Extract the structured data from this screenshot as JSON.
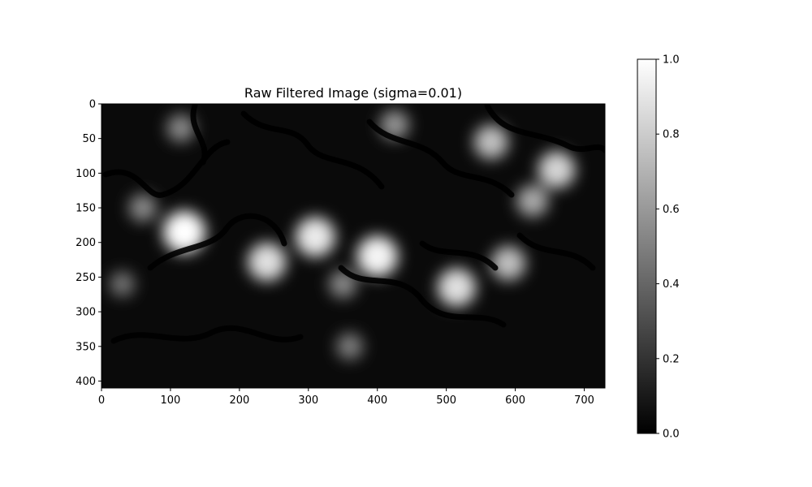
{
  "chart_data": {
    "type": "heatmap",
    "title": "Raw Filtered Image (sigma=0.01)",
    "xlabel": "",
    "ylabel": "",
    "colormap": "gray",
    "xlim": [
      0,
      730
    ],
    "ylim": [
      410,
      0
    ],
    "x_ticks": [
      0,
      100,
      200,
      300,
      400,
      500,
      600,
      700
    ],
    "y_ticks": [
      0,
      50,
      100,
      150,
      200,
      250,
      300,
      350,
      400
    ],
    "colorbar": {
      "range": [
        0.0,
        1.0
      ],
      "ticks": [
        "0.0",
        "0.2",
        "0.4",
        "0.6",
        "0.8",
        "1.0"
      ]
    },
    "bright_spots": [
      {
        "x": 120,
        "y": 185,
        "value": 1.0
      },
      {
        "x": 400,
        "y": 220,
        "value": 0.95
      },
      {
        "x": 310,
        "y": 192,
        "value": 0.9
      },
      {
        "x": 240,
        "y": 228,
        "value": 0.85
      },
      {
        "x": 515,
        "y": 265,
        "value": 0.85
      },
      {
        "x": 660,
        "y": 95,
        "value": 0.8
      },
      {
        "x": 565,
        "y": 55,
        "value": 0.7
      },
      {
        "x": 590,
        "y": 230,
        "value": 0.7
      },
      {
        "x": 625,
        "y": 140,
        "value": 0.6
      },
      {
        "x": 425,
        "y": 30,
        "value": 0.5
      },
      {
        "x": 60,
        "y": 150,
        "value": 0.45
      },
      {
        "x": 115,
        "y": 35,
        "value": 0.45
      },
      {
        "x": 350,
        "y": 260,
        "value": 0.45
      },
      {
        "x": 360,
        "y": 350,
        "value": 0.4
      },
      {
        "x": 30,
        "y": 260,
        "value": 0.35
      }
    ]
  }
}
